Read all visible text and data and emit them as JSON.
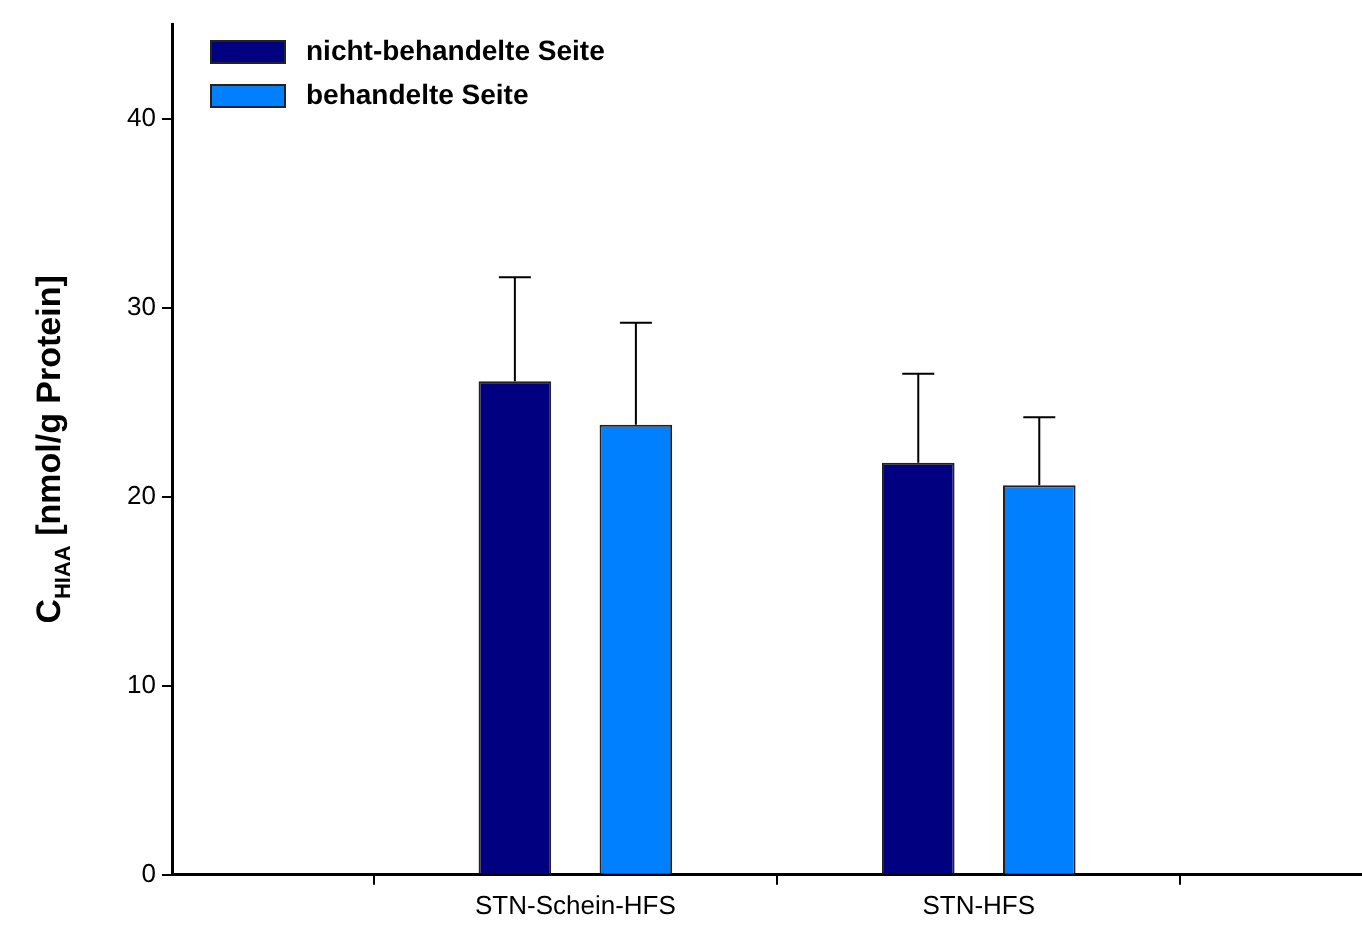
{
  "chart_data": {
    "type": "bar",
    "ylabel": "C$_{HIAA}$ [nmol/g Protein]",
    "categories": [
      "STN-Schein-HFS",
      "STN-HFS"
    ],
    "series": [
      {
        "name": "nicht-behandelte Seite",
        "color": "#000080",
        "values": [
          26.1,
          21.8
        ],
        "errors": [
          [
            26.1,
            31.6
          ],
          [
            21.8,
            26.5
          ]
        ]
      },
      {
        "name": "behandelte Seite",
        "color": "#0080ff",
        "values": [
          23.8,
          20.6
        ],
        "errors": [
          [
            23.8,
            29.2
          ],
          [
            20.6,
            24.2
          ]
        ]
      }
    ],
    "ylim": [
      0,
      45
    ],
    "yticks": [
      0,
      10,
      20,
      30,
      40
    ],
    "grid": false,
    "legend": "top left"
  }
}
